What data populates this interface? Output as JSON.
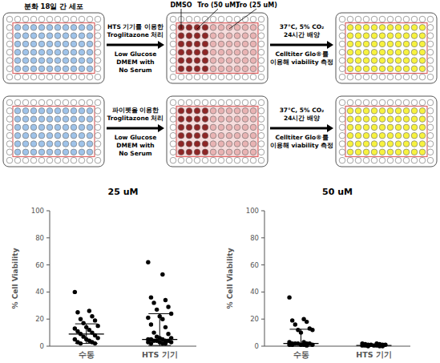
{
  "diagram": {
    "rows": [
      {
        "start_label": "분화 18일 간 세포",
        "treatment": [
          "HTS 기기를 이용한",
          "Troglitazone 처리"
        ],
        "medium": [
          "Low Glucose",
          "DMEM with",
          "No Serum"
        ]
      },
      {
        "treatment": [
          "파이펫을 이용한",
          "Troglitazone 처리"
        ],
        "medium": [
          "Low Glucose",
          "DMEM with",
          "No Serum"
        ]
      }
    ],
    "plate_labels": [
      "DMSO",
      "Tro (50 uM)",
      "Tro (25 uM)"
    ],
    "incubation": [
      "37°C, 5% CO₂",
      "24시간 배양"
    ],
    "readout": [
      "Celltiter Glo®를",
      "이용해 viability 측정"
    ]
  },
  "chart_data": [
    {
      "type": "scatter",
      "title": "25 uM",
      "y_label": "% Cell Viability",
      "categories": [
        "수동",
        "HTS 기기"
      ],
      "values": [
        [
          40,
          26,
          25,
          22,
          20,
          19,
          17,
          15,
          14,
          13,
          12,
          11,
          10,
          9,
          8,
          7,
          6,
          5,
          5,
          4,
          3,
          3,
          2,
          2
        ],
        [
          62,
          53,
          36,
          34,
          32,
          29,
          27,
          24,
          22,
          21,
          20,
          16,
          14,
          10,
          9,
          7,
          6,
          6,
          5,
          5,
          5,
          4,
          4,
          4,
          4,
          3,
          3,
          3,
          2,
          2,
          2
        ]
      ],
      "center": [
        9,
        5
      ],
      "low": [
        2,
        0.5
      ],
      "high": [
        16.5,
        24
      ],
      "ylim": [
        0,
        100
      ],
      "yticks": [
        0,
        20,
        40,
        60,
        80,
        100
      ],
      "color": "#000000",
      "marker": "circle"
    },
    {
      "type": "scatter",
      "title": "50 uM",
      "y_label": "% Cell Viability",
      "categories": [
        "수동",
        "HTS 기기"
      ],
      "values": [
        [
          36,
          20,
          19,
          18,
          16,
          13,
          12,
          12,
          10,
          3,
          3,
          2,
          2,
          2,
          2,
          2,
          1,
          1,
          1,
          1,
          1,
          0.5
        ],
        [
          2,
          2,
          1.5,
          1.5,
          1,
          1,
          1,
          1,
          0.5,
          0.5,
          0.5,
          0.5,
          0,
          0,
          0
        ]
      ],
      "center": [
        2,
        0.5
      ],
      "low": [
        0,
        0
      ],
      "high": [
        12.5,
        1.5
      ],
      "ylim": [
        0,
        100
      ],
      "yticks": [
        0,
        20,
        40,
        60,
        80,
        100
      ],
      "color": "#000000",
      "marker": "circle"
    }
  ]
}
